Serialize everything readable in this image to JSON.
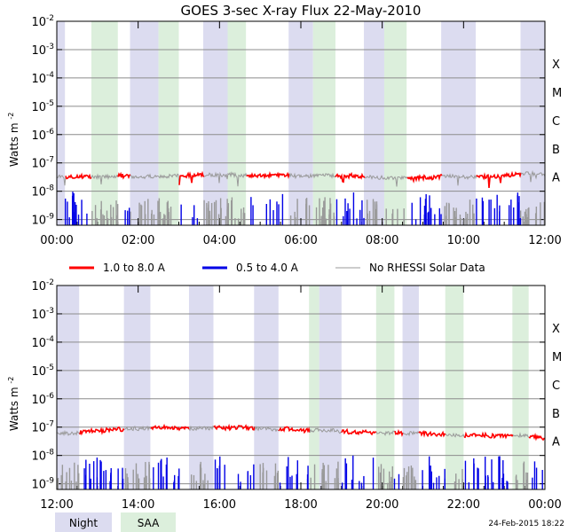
{
  "colors": {
    "night": "#dcdcf0",
    "saa": "#dcefdc",
    "long_channel": "#ff0000",
    "short_channel": "#0000e6",
    "no_data": "#999999",
    "gridline": "#8c8c8c"
  },
  "chart_data": [
    {
      "type": "line",
      "title": "GOES 3-sec X-ray Flux   22-May-2010",
      "ylabel": "Watts m",
      "ylabel_exp": "-2",
      "yscale": "log",
      "ylim_exp": [
        -9.2,
        -2
      ],
      "x_range_hours": [
        0,
        12
      ],
      "x_tick_labels": [
        "00:00",
        "02:00",
        "04:00",
        "06:00",
        "08:00",
        "10:00",
        "12:00"
      ],
      "y_ticks": [
        {
          "exp": -2,
          "label": "-2"
        },
        {
          "exp": -3,
          "label": "-3"
        },
        {
          "exp": -4,
          "label": "-4"
        },
        {
          "exp": -5,
          "label": "-5"
        },
        {
          "exp": -6,
          "label": "-6"
        },
        {
          "exp": -7,
          "label": "-7"
        },
        {
          "exp": -8,
          "label": "-8"
        },
        {
          "exp": -9,
          "label": "-9"
        }
      ],
      "flare_classes": [
        {
          "label": "X",
          "exp": -3.5
        },
        {
          "label": "M",
          "exp": -4.5
        },
        {
          "label": "C",
          "exp": -5.5
        },
        {
          "label": "B",
          "exp": -6.5
        },
        {
          "label": "A",
          "exp": -7.5
        }
      ],
      "night_hours": [
        [
          0.0,
          0.2
        ],
        [
          1.8,
          2.5
        ],
        [
          3.6,
          4.2
        ],
        [
          5.7,
          6.3
        ],
        [
          7.55,
          8.05
        ],
        [
          9.45,
          10.3
        ],
        [
          11.4,
          12.0
        ]
      ],
      "saa_hours": [
        [
          0.85,
          1.5
        ],
        [
          2.5,
          3.0
        ],
        [
          4.2,
          4.65
        ],
        [
          6.3,
          6.85
        ],
        [
          8.05,
          8.6
        ]
      ],
      "series": [
        {
          "name": "1.0 to 8.0 A",
          "key": "long",
          "baseline_exp": -7.45
        },
        {
          "name": "0.5 to 4.0 A",
          "key": "short",
          "baseline_exp": -9.1
        }
      ]
    },
    {
      "type": "line",
      "title": "",
      "ylabel": "Watts m",
      "ylabel_exp": "-2",
      "yscale": "log",
      "ylim_exp": [
        -9.2,
        -2
      ],
      "x_range_hours": [
        12,
        24
      ],
      "x_tick_labels": [
        "12:00",
        "14:00",
        "16:00",
        "18:00",
        "20:00",
        "22:00",
        "00:00"
      ],
      "y_ticks": [
        {
          "exp": -2,
          "label": "-2"
        },
        {
          "exp": -3,
          "label": "-3"
        },
        {
          "exp": -4,
          "label": "-4"
        },
        {
          "exp": -5,
          "label": "-5"
        },
        {
          "exp": -6,
          "label": "-6"
        },
        {
          "exp": -7,
          "label": "-7"
        },
        {
          "exp": -8,
          "label": "-8"
        },
        {
          "exp": -9,
          "label": "-9"
        }
      ],
      "flare_classes": [
        {
          "label": "X",
          "exp": -3.5
        },
        {
          "label": "M",
          "exp": -4.5
        },
        {
          "label": "C",
          "exp": -5.5
        },
        {
          "label": "B",
          "exp": -6.5
        },
        {
          "label": "A",
          "exp": -7.5
        }
      ],
      "night_hours": [
        [
          12.0,
          12.55
        ],
        [
          13.65,
          14.3
        ],
        [
          15.25,
          15.85
        ],
        [
          16.85,
          17.45
        ],
        [
          18.45,
          19.0
        ],
        [
          20.5,
          20.9
        ]
      ],
      "saa_hours": [
        [
          18.2,
          18.45
        ],
        [
          19.85,
          20.3
        ],
        [
          21.55,
          22.0
        ],
        [
          23.2,
          23.6
        ]
      ],
      "series": [
        {
          "name": "1.0 to 8.0 A",
          "key": "long",
          "baseline_exp": -7.25
        },
        {
          "name": "0.5 to 4.0 A",
          "key": "short",
          "baseline_exp": -9.1
        }
      ]
    }
  ],
  "legend": {
    "items": [
      {
        "label": "1.0 to 8.0 A",
        "key": "long"
      },
      {
        "label": "0.5 to 4.0 A",
        "key": "short"
      },
      {
        "label": "No RHESSI Solar Data",
        "key": "no_data"
      }
    ]
  },
  "footer": {
    "night_label": "Night",
    "saa_label": "SAA",
    "timestamp": "24-Feb-2015 18:22"
  }
}
